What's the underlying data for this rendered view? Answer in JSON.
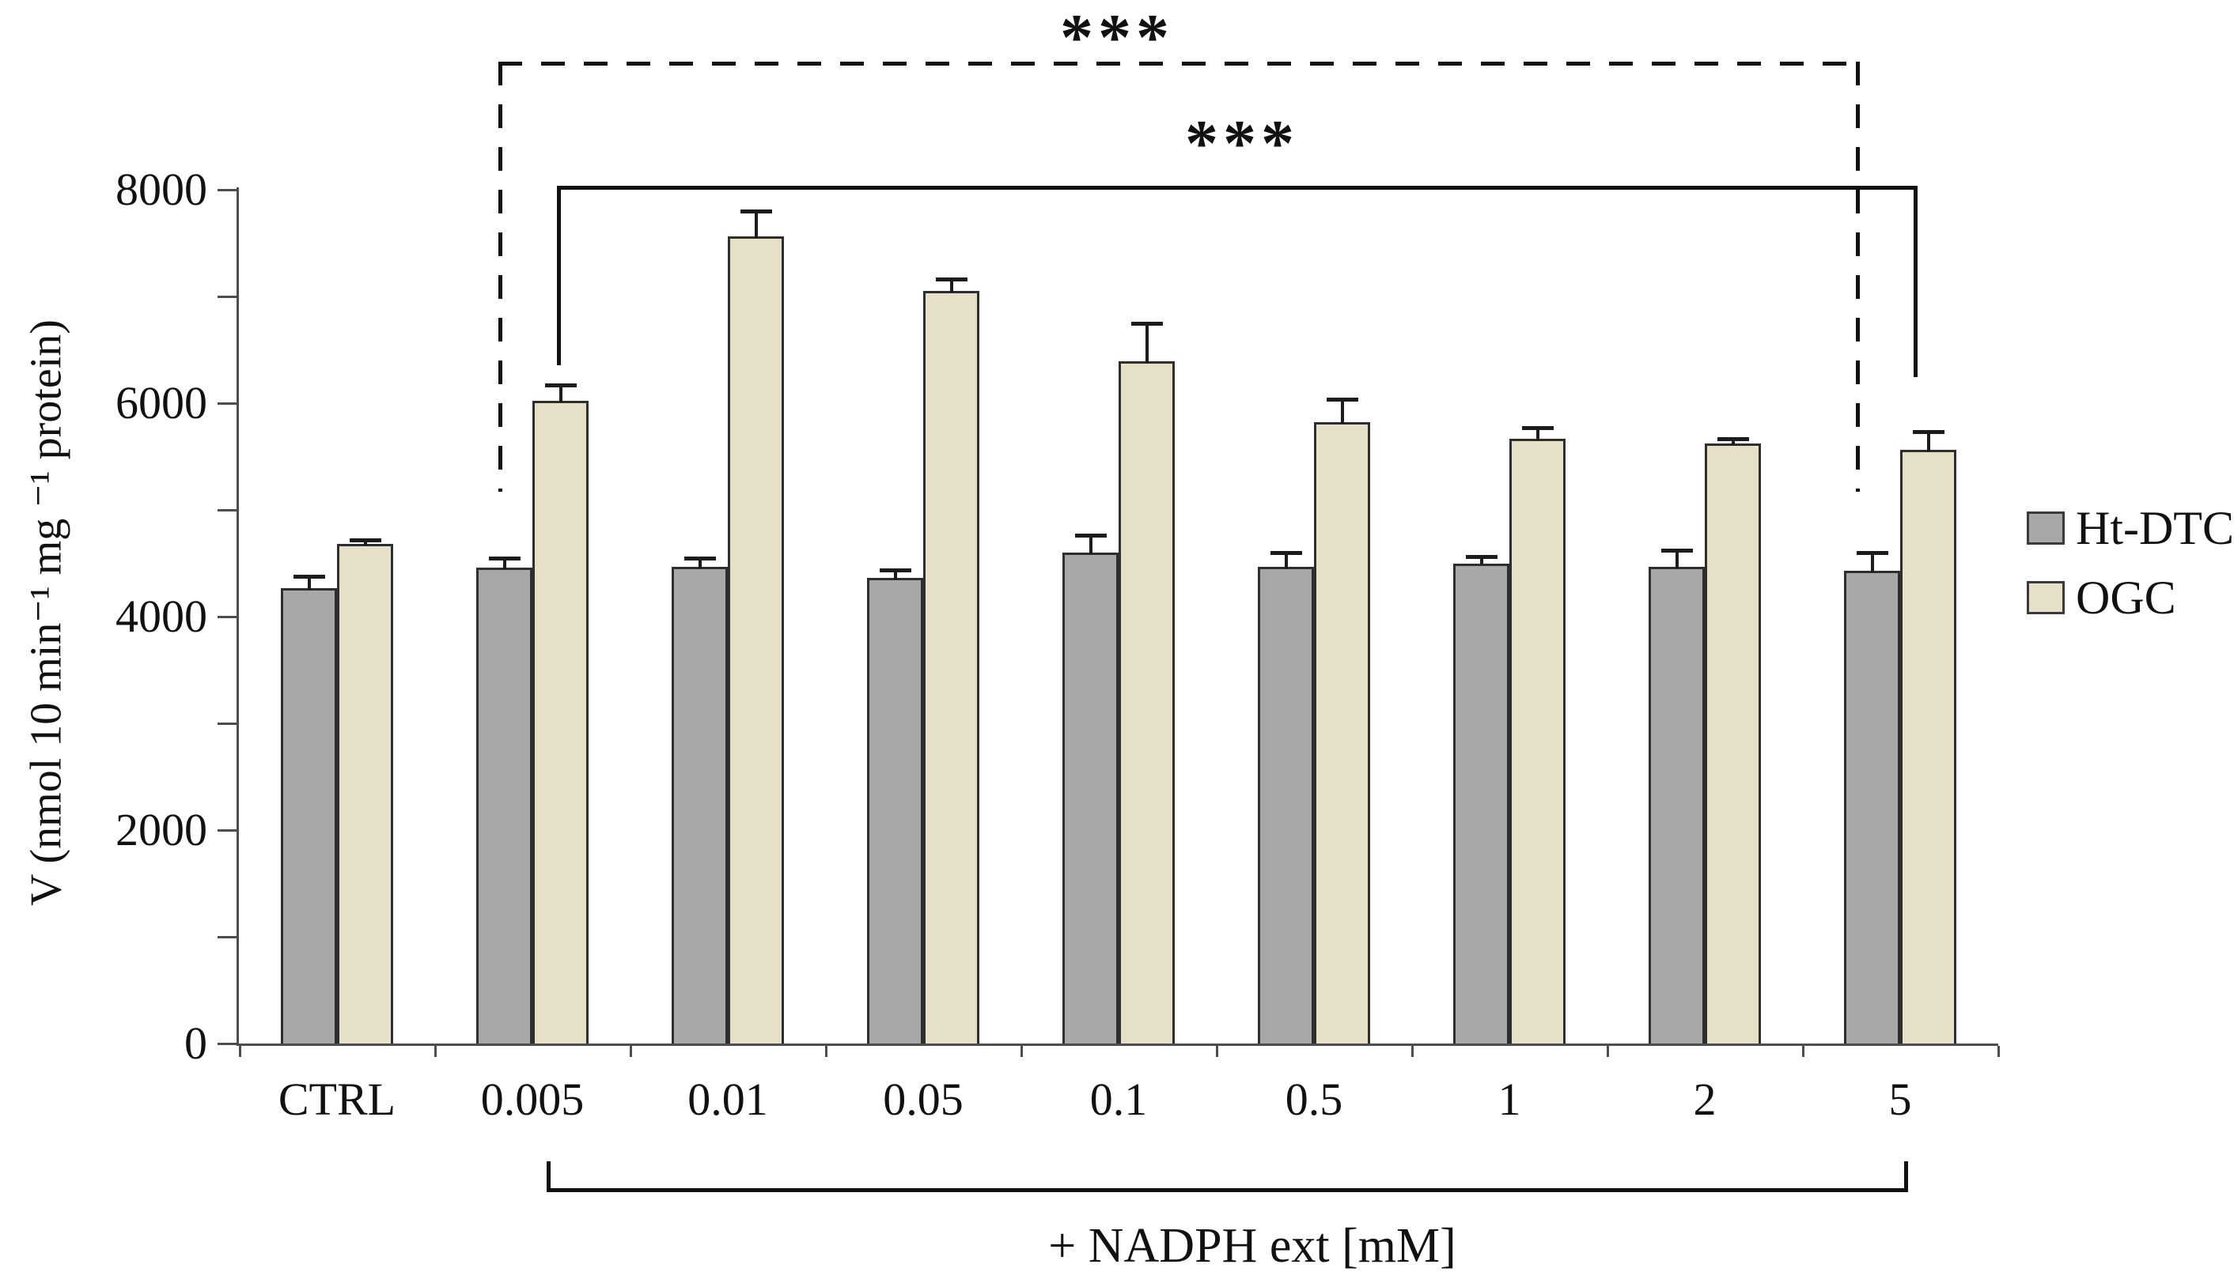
{
  "figure": {
    "y_axis": {
      "label": "V (nmol 10 min⁻¹ mg ⁻¹ protein)"
    },
    "x_axis": {
      "bracket_label": "+ NADPH ext [mM]"
    },
    "legend": {
      "items": [
        {
          "label": "Ht-DTC",
          "color": "#a8a8a8"
        },
        {
          "label": "OGC",
          "color": "#e6e0c8"
        }
      ]
    },
    "annotations": {
      "top_significance": "***",
      "mid_significance": "***"
    }
  },
  "chart_data": {
    "type": "bar",
    "title": "",
    "xlabel": "+ NADPH ext [mM]",
    "ylabel": "V (nmol 10 min⁻¹ mg ⁻¹ protein)",
    "categories": [
      "CTRL",
      "0.005",
      "0.01",
      "0.05",
      "0.1",
      "0.5",
      "1",
      "2",
      "5"
    ],
    "series": [
      {
        "name": "Ht-DTC",
        "color": "#a8a8a8",
        "values": [
          4270,
          4460,
          4465,
          4360,
          4600,
          4470,
          4500,
          4470,
          4430
        ],
        "errors": [
          110,
          85,
          85,
          80,
          165,
          130,
          60,
          150,
          170
        ]
      },
      {
        "name": "OGC",
        "color": "#e6e0c8",
        "values": [
          4680,
          6020,
          7560,
          7050,
          6390,
          5820,
          5670,
          5620,
          5560
        ],
        "errors": [
          40,
          150,
          240,
          110,
          360,
          220,
          100,
          45,
          170
        ]
      }
    ],
    "ylim": [
      0,
      8000
    ],
    "yticks": [
      0,
      2000,
      4000,
      6000,
      8000
    ],
    "ytick_labels": [
      "0",
      "2000",
      "4000",
      "6000",
      "8000"
    ],
    "minor_tick_step": 1000,
    "grid": false,
    "error_bars": true,
    "legend_position": "right",
    "significance_brackets": [
      {
        "label": "***",
        "style": "dashed",
        "from_category": "0.005",
        "to_category": "5"
      },
      {
        "label": "***",
        "style": "solid",
        "from_category": "0.005",
        "to_category": "5"
      }
    ],
    "x_axis_bracket": {
      "label": "+ NADPH ext [mM]",
      "from_category": "0.005",
      "to_category": "5"
    }
  }
}
